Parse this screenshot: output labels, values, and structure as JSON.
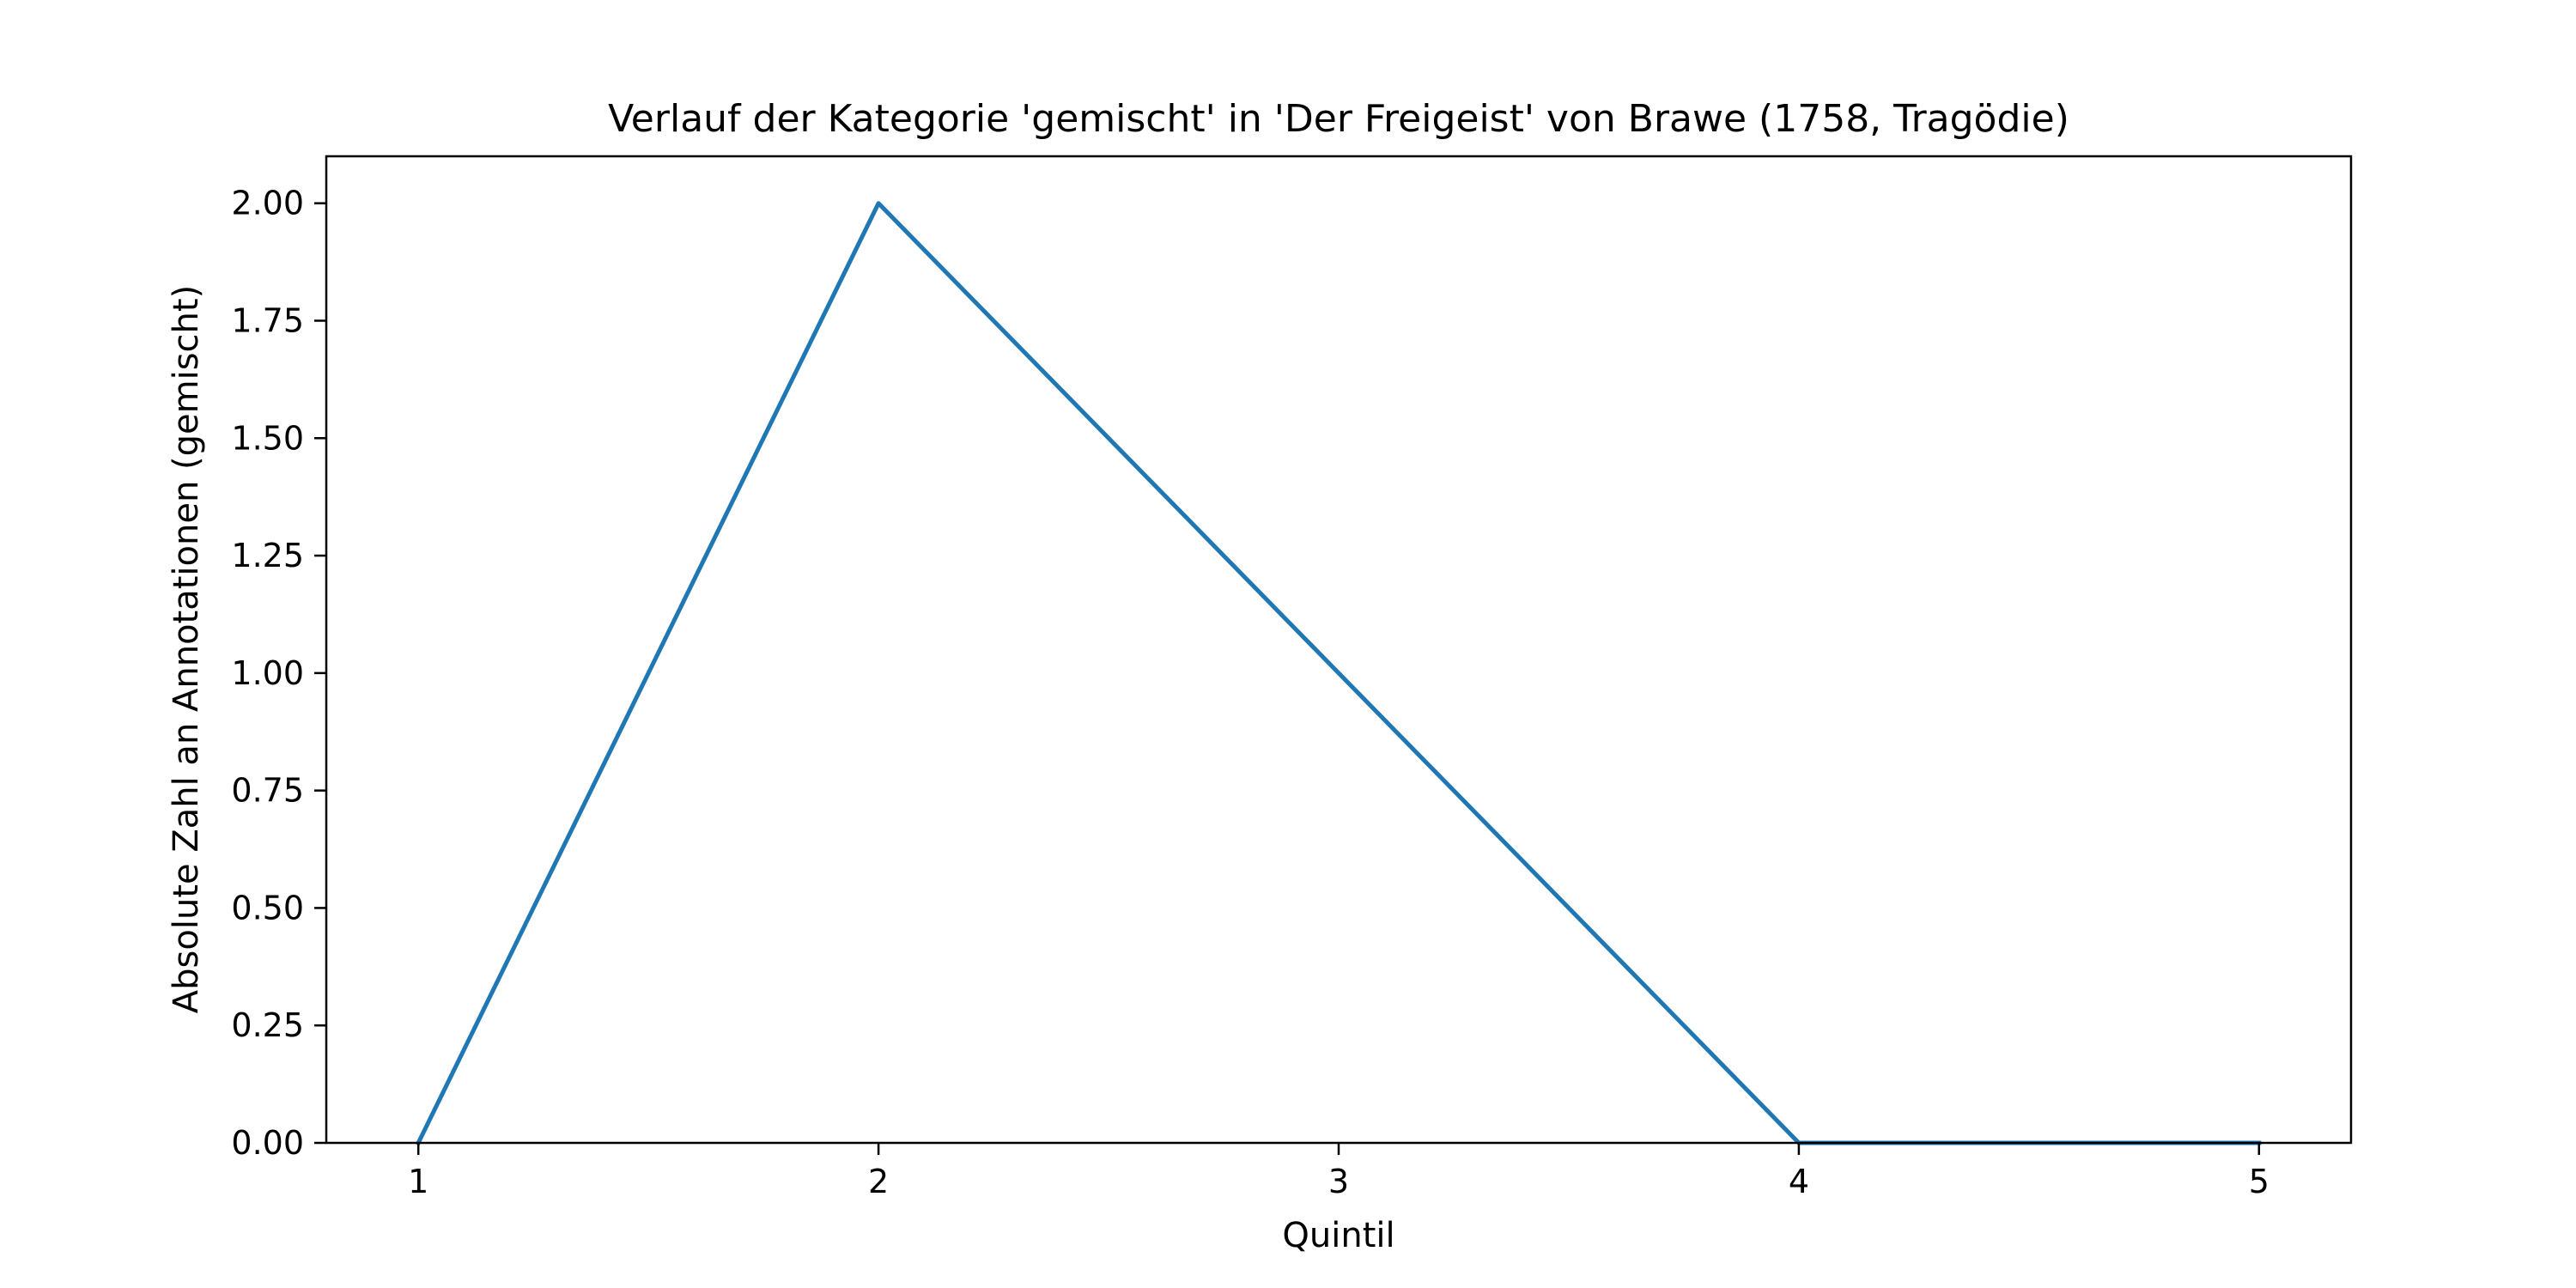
{
  "chart_data": {
    "type": "line",
    "title": "Verlauf der Kategorie 'gemischt' in 'Der Freigeist' von Brawe (1758, Tragödie)",
    "xlabel": "Quintil",
    "ylabel": "Absolute Zahl an Annotationen (gemischt)",
    "x": [
      1,
      2,
      3,
      4,
      5
    ],
    "series": [
      {
        "values": [
          0,
          2,
          1,
          0,
          0
        ],
        "color": "#1f77b4"
      }
    ],
    "xlim": [
      0.8,
      5.2
    ],
    "ylim": [
      0,
      2.1
    ],
    "xticks": [
      "1",
      "2",
      "3",
      "4",
      "5"
    ],
    "yticks": [
      "0.00",
      "0.25",
      "0.50",
      "0.75",
      "1.00",
      "1.25",
      "1.50",
      "1.75",
      "2.00"
    ],
    "grid": false,
    "legend": false
  }
}
